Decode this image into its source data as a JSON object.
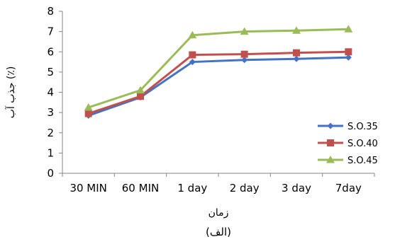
{
  "chart_data": {
    "type": "line",
    "categories": [
      "30 MIN",
      "60 MIN",
      "1 day",
      "2 day",
      "3 day",
      "7day"
    ],
    "series": [
      {
        "name": "S.O.35",
        "values": [
          2.85,
          3.75,
          5.5,
          5.6,
          5.65,
          5.72
        ],
        "color": "#4472C4",
        "marker": "diamond"
      },
      {
        "name": "S.O.40",
        "values": [
          2.95,
          3.8,
          5.85,
          5.88,
          5.95,
          6.0
        ],
        "color": "#C0504D",
        "marker": "square"
      },
      {
        "name": "S.O.45",
        "values": [
          3.25,
          4.1,
          6.82,
          7.0,
          7.05,
          7.12
        ],
        "color": "#9BBB59",
        "marker": "triangle"
      }
    ],
    "xlabel": "زمان",
    "ylabel": "جذب آب (٪)",
    "ylim": [
      0,
      8
    ],
    "yticks": [
      0,
      1,
      2,
      3,
      4,
      5,
      6,
      7,
      8
    ],
    "grid": false,
    "legend_position": "right",
    "caption": "(الف)"
  }
}
